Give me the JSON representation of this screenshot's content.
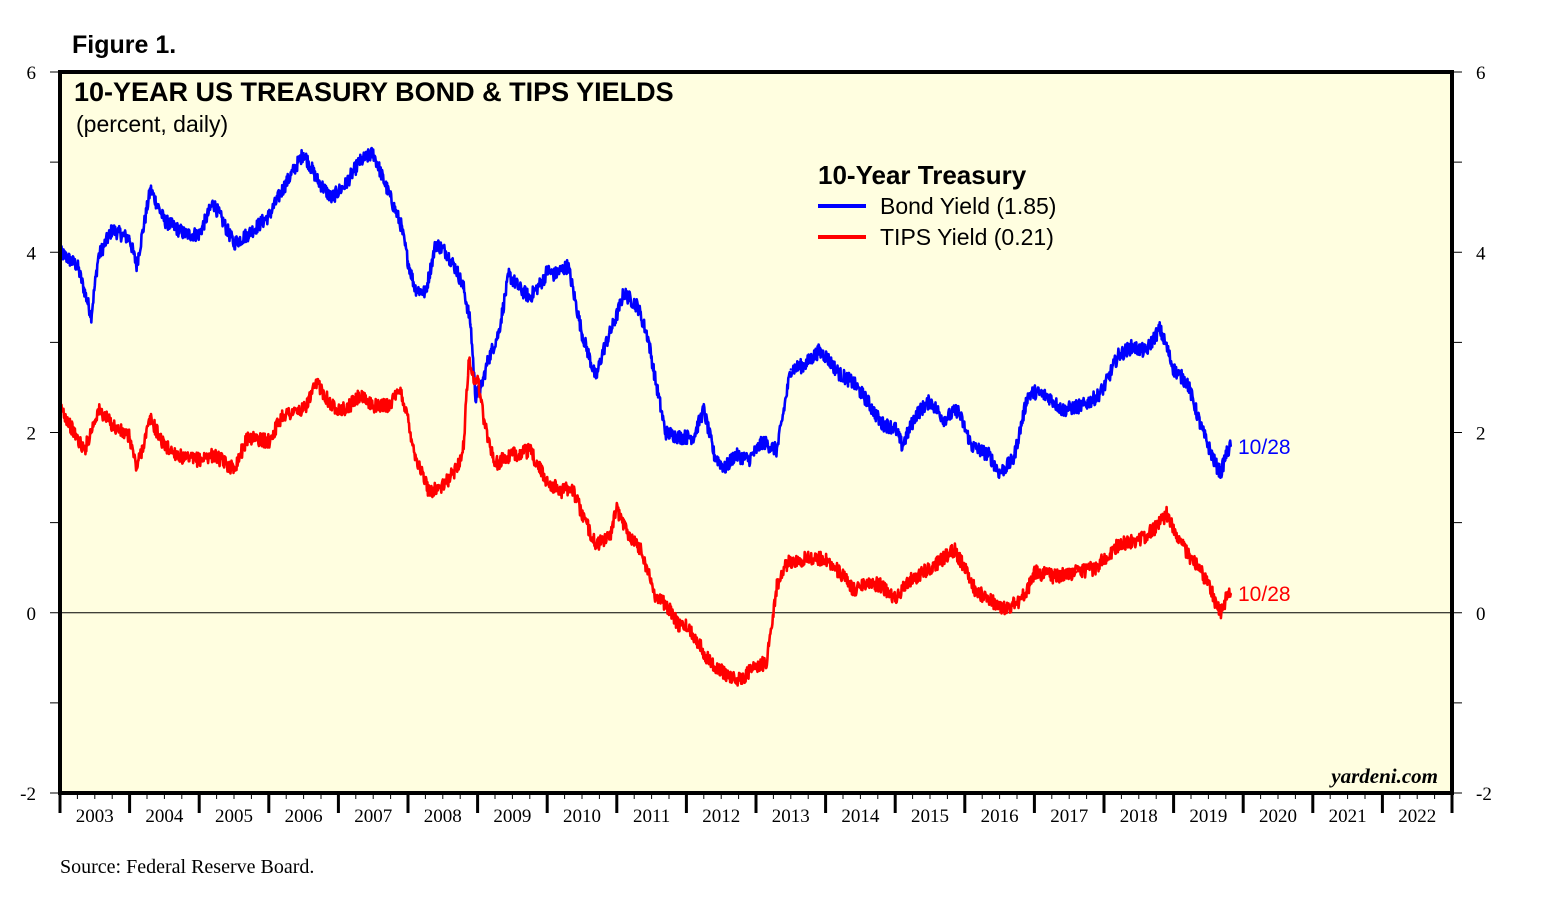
{
  "figure_label": "Figure 1.",
  "source_note": "Source: Federal Reserve Board.",
  "watermark": "yardeni.com",
  "colors": {
    "plot_background": "#fffee0",
    "bond": "#0000ff",
    "tips": "#ff0000",
    "frame": "#000000"
  },
  "chart_data": {
    "type": "line",
    "title": "10-YEAR US TREASURY BOND & TIPS YIELDS",
    "subtitle": "(percent, daily)",
    "legend_title": "10-Year Treasury",
    "legend_position": "top-right",
    "x_tick_labels": [
      "2003",
      "2004",
      "2005",
      "2006",
      "2007",
      "2008",
      "2009",
      "2010",
      "2011",
      "2012",
      "2013",
      "2014",
      "2015",
      "2016",
      "2017",
      "2018",
      "2019",
      "2020",
      "2021",
      "2022"
    ],
    "xlim": [
      2003,
      2023
    ],
    "ylim": [
      -2,
      6
    ],
    "y_tick_labels": [
      "-2",
      "0",
      "2",
      "4",
      "6"
    ],
    "zero_line": true,
    "series": [
      {
        "name": "Bond Yield (1.85)",
        "end_label": "10/28",
        "x": [
          2003.0,
          2003.25,
          2003.45,
          2003.55,
          2003.75,
          2004.0,
          2004.1,
          2004.3,
          2004.5,
          2004.8,
          2005.0,
          2005.2,
          2005.5,
          2005.7,
          2006.0,
          2006.2,
          2006.5,
          2006.7,
          2006.9,
          2007.1,
          2007.3,
          2007.5,
          2007.7,
          2007.9,
          2008.0,
          2008.1,
          2008.25,
          2008.4,
          2008.55,
          2008.7,
          2008.8,
          2008.9,
          2008.97,
          2009.05,
          2009.15,
          2009.3,
          2009.45,
          2009.6,
          2009.75,
          2009.95,
          2010.0,
          2010.1,
          2010.3,
          2010.5,
          2010.7,
          2010.8,
          2011.0,
          2011.1,
          2011.3,
          2011.45,
          2011.55,
          2011.7,
          2011.9,
          2012.1,
          2012.25,
          2012.4,
          2012.55,
          2012.7,
          2012.9,
          2013.1,
          2013.3,
          2013.5,
          2013.7,
          2013.9,
          2014.0,
          2014.2,
          2014.4,
          2014.6,
          2014.8,
          2015.0,
          2015.1,
          2015.3,
          2015.5,
          2015.7,
          2015.9,
          2016.1,
          2016.35,
          2016.5,
          2016.7,
          2016.9,
          2017.0,
          2017.2,
          2017.4,
          2017.7,
          2017.9,
          2018.0,
          2018.2,
          2018.4,
          2018.6,
          2018.8,
          2018.9,
          2019.0,
          2019.2,
          2019.4,
          2019.6,
          2019.68,
          2019.75,
          2019.82
        ],
        "y": [
          4.0,
          3.85,
          3.3,
          3.95,
          4.25,
          4.15,
          3.85,
          4.7,
          4.35,
          4.2,
          4.2,
          4.55,
          4.1,
          4.2,
          4.4,
          4.7,
          5.1,
          4.8,
          4.6,
          4.75,
          5.0,
          5.1,
          4.7,
          4.3,
          3.9,
          3.6,
          3.55,
          4.1,
          4.0,
          3.8,
          3.6,
          3.2,
          2.4,
          2.5,
          2.8,
          3.1,
          3.75,
          3.6,
          3.5,
          3.7,
          3.8,
          3.75,
          3.85,
          3.1,
          2.6,
          2.9,
          3.3,
          3.55,
          3.4,
          3.05,
          2.6,
          2.0,
          1.95,
          1.95,
          2.25,
          1.75,
          1.6,
          1.75,
          1.7,
          1.9,
          1.8,
          2.7,
          2.75,
          2.9,
          2.85,
          2.65,
          2.55,
          2.35,
          2.1,
          2.05,
          1.85,
          2.2,
          2.35,
          2.15,
          2.25,
          1.85,
          1.75,
          1.55,
          1.7,
          2.4,
          2.45,
          2.4,
          2.25,
          2.3,
          2.4,
          2.5,
          2.85,
          2.95,
          2.9,
          3.15,
          2.95,
          2.7,
          2.55,
          2.05,
          1.65,
          1.55,
          1.75,
          1.85
        ]
      },
      {
        "name": "TIPS Yield (0.21)",
        "end_label": "10/28",
        "x": [
          2003.0,
          2003.2,
          2003.35,
          2003.55,
          2003.8,
          2004.0,
          2004.1,
          2004.3,
          2004.5,
          2004.8,
          2005.0,
          2005.2,
          2005.5,
          2005.7,
          2006.0,
          2006.2,
          2006.5,
          2006.7,
          2006.9,
          2007.1,
          2007.3,
          2007.5,
          2007.7,
          2007.9,
          2008.0,
          2008.1,
          2008.3,
          2008.5,
          2008.65,
          2008.75,
          2008.8,
          2008.87,
          2008.95,
          2009.0,
          2009.1,
          2009.25,
          2009.5,
          2009.75,
          2010.0,
          2010.2,
          2010.35,
          2010.5,
          2010.7,
          2010.9,
          2011.0,
          2011.15,
          2011.35,
          2011.55,
          2011.7,
          2011.9,
          2012.0,
          2012.15,
          2012.3,
          2012.5,
          2012.75,
          2013.0,
          2013.15,
          2013.3,
          2013.45,
          2013.7,
          2014.0,
          2014.2,
          2014.4,
          2014.6,
          2014.8,
          2015.0,
          2015.2,
          2015.4,
          2015.6,
          2015.85,
          2016.0,
          2016.15,
          2016.35,
          2016.55,
          2016.75,
          2016.9,
          2017.0,
          2017.3,
          2017.6,
          2017.9,
          2018.0,
          2018.2,
          2018.45,
          2018.6,
          2018.75,
          2018.9,
          2019.0,
          2019.2,
          2019.4,
          2019.55,
          2019.6,
          2019.68,
          2019.75,
          2019.82
        ],
        "y": [
          2.3,
          2.0,
          1.8,
          2.25,
          2.05,
          1.95,
          1.6,
          2.15,
          1.85,
          1.7,
          1.7,
          1.75,
          1.6,
          1.95,
          1.9,
          2.2,
          2.25,
          2.55,
          2.3,
          2.25,
          2.4,
          2.3,
          2.3,
          2.45,
          2.15,
          1.75,
          1.35,
          1.4,
          1.55,
          1.7,
          1.85,
          2.8,
          2.6,
          2.6,
          2.1,
          1.65,
          1.75,
          1.8,
          1.45,
          1.35,
          1.4,
          1.1,
          0.75,
          0.85,
          1.15,
          0.9,
          0.7,
          0.2,
          0.1,
          -0.15,
          -0.15,
          -0.3,
          -0.5,
          -0.65,
          -0.75,
          -0.6,
          -0.55,
          0.3,
          0.55,
          0.6,
          0.6,
          0.45,
          0.25,
          0.35,
          0.3,
          0.15,
          0.35,
          0.45,
          0.55,
          0.7,
          0.5,
          0.25,
          0.15,
          0.05,
          0.1,
          0.25,
          0.45,
          0.4,
          0.45,
          0.5,
          0.6,
          0.75,
          0.8,
          0.85,
          0.95,
          1.1,
          0.95,
          0.65,
          0.45,
          0.25,
          0.1,
          0.0,
          0.15,
          0.21
        ]
      }
    ]
  }
}
